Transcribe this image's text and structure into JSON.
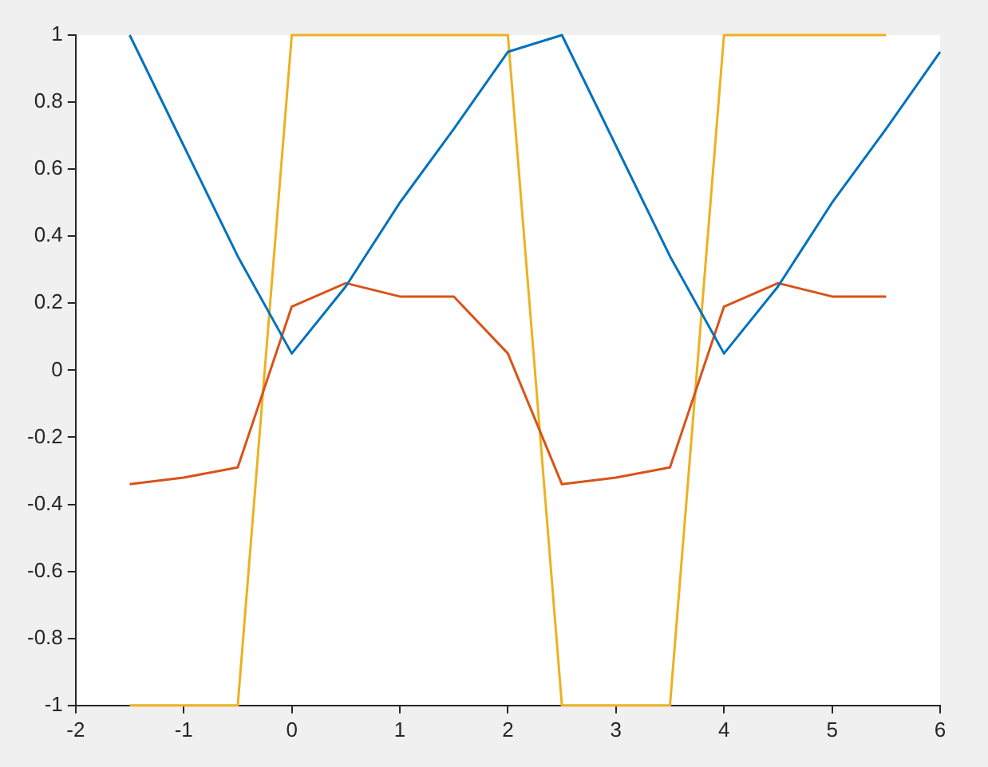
{
  "chart_data": {
    "type": "line",
    "xlim": [
      -2,
      6
    ],
    "xticks": [
      -2,
      -1,
      0,
      1,
      2,
      3,
      4,
      5,
      6
    ],
    "ylim": [
      -1,
      1
    ],
    "yticks": [
      -1,
      -0.8,
      -0.6,
      -0.4,
      -0.2,
      0,
      0.2,
      0.4,
      0.6,
      0.8,
      1
    ],
    "grid": false,
    "legend": false,
    "marker": "none",
    "line_style": "solid",
    "series": [
      {
        "color": "#0072bd",
        "x": [
          -1.5,
          -1,
          -0.5,
          0,
          0.5,
          1,
          1.5,
          2,
          2.5,
          3,
          3.5,
          4,
          4.5,
          5,
          5.5,
          6
        ],
        "values": [
          1,
          0.67,
          0.34,
          0.05,
          0.25,
          0.5,
          0.72,
          0.95,
          1,
          0.67,
          0.34,
          0.05,
          0.25,
          0.5,
          0.72,
          0.95
        ]
      },
      {
        "color": "#d95319",
        "x": [
          -1.5,
          -1,
          -0.5,
          0,
          0.5,
          1,
          1.5,
          2,
          2.5,
          3,
          3.5,
          4,
          4.5,
          5,
          5.5
        ],
        "values": [
          -0.34,
          -0.32,
          -0.29,
          0.19,
          0.26,
          0.22,
          0.22,
          0.05,
          -0.34,
          -0.32,
          -0.29,
          0.19,
          0.26,
          0.22,
          0.22
        ]
      },
      {
        "color": "#edb120",
        "x": [
          -1.5,
          -1,
          -0.5,
          0,
          0.5,
          1,
          1.5,
          2,
          2.5,
          3,
          3.5,
          4,
          4.5,
          5,
          5.5
        ],
        "values": [
          -1,
          -1,
          -1,
          1,
          1,
          1,
          1,
          1,
          -1,
          -1,
          -1,
          1,
          1,
          1,
          1
        ]
      }
    ]
  }
}
